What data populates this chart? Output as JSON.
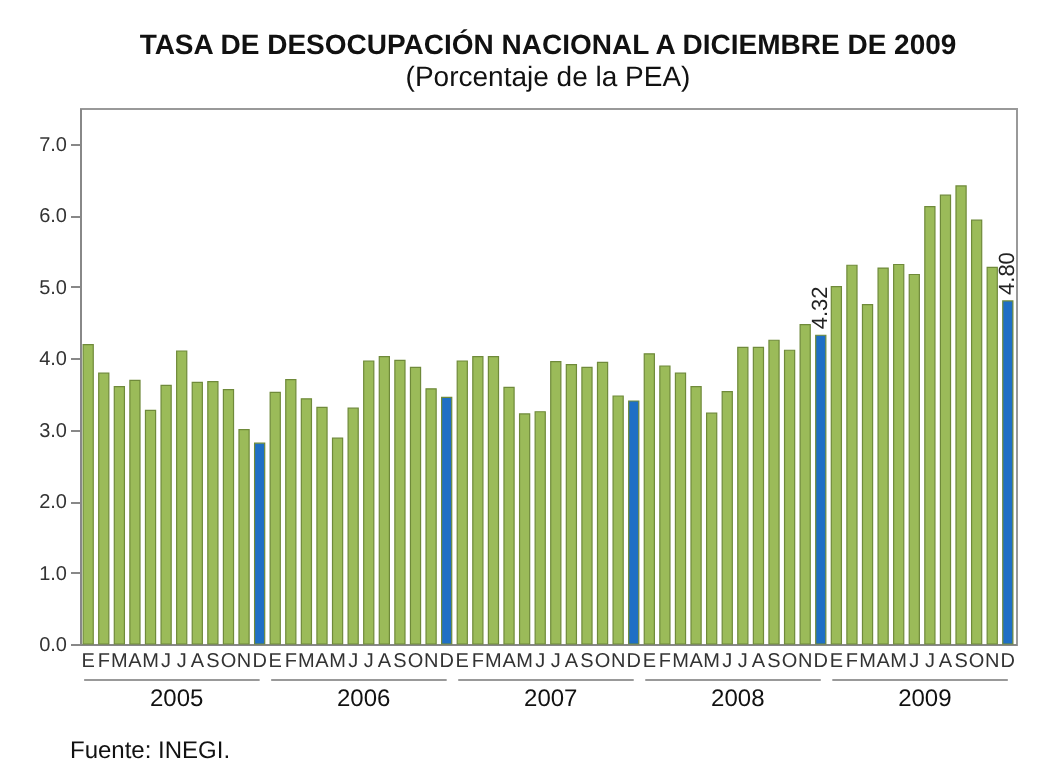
{
  "chart_data": {
    "type": "bar",
    "title": "TASA DE DESOCUPACIÓN NACIONAL A DICIEMBRE DE 2009",
    "subtitle": "(Porcentaje de la PEA)",
    "annotations": [
      "2005",
      "2006",
      "2007",
      "2008",
      "2009",
      "Fuente: INEGI."
    ],
    "categories": [
      "E",
      "F",
      "M",
      "A",
      "M",
      "J",
      "J",
      "A",
      "S",
      "O",
      "N",
      "D",
      "E",
      "F",
      "M",
      "A",
      "M",
      "J",
      "J",
      "A",
      "S",
      "O",
      "N",
      "D",
      "E",
      "F",
      "M",
      "A",
      "M",
      "J",
      "J",
      "A",
      "S",
      "O",
      "N",
      "D",
      "E",
      "F",
      "M",
      "A",
      "M",
      "J",
      "J",
      "A",
      "S",
      "O",
      "N",
      "D",
      "E",
      "F",
      "M",
      "A",
      "M",
      "J",
      "J",
      "A",
      "S",
      "O",
      "N",
      "D"
    ],
    "values": [
      4.19,
      3.79,
      3.6,
      3.69,
      3.27,
      3.62,
      4.1,
      3.66,
      3.67,
      3.56,
      3.0,
      2.81,
      3.52,
      3.7,
      3.43,
      3.31,
      2.88,
      3.3,
      3.96,
      4.02,
      3.97,
      3.87,
      3.57,
      3.45,
      3.96,
      4.02,
      4.02,
      3.59,
      3.22,
      3.25,
      3.95,
      3.91,
      3.87,
      3.94,
      3.47,
      3.4,
      4.06,
      3.89,
      3.79,
      3.6,
      3.23,
      3.53,
      4.15,
      4.15,
      4.25,
      4.11,
      4.47,
      4.32,
      5.0,
      5.3,
      4.75,
      5.26,
      5.31,
      5.17,
      6.12,
      6.28,
      6.41,
      5.93,
      5.27,
      4.8
    ],
    "colors": [
      "#9bbb59",
      "#9bbb59",
      "#9bbb59",
      "#9bbb59",
      "#9bbb59",
      "#9bbb59",
      "#9bbb59",
      "#9bbb59",
      "#9bbb59",
      "#9bbb59",
      "#9bbb59",
      "#1f6fc5",
      "#9bbb59",
      "#9bbb59",
      "#9bbb59",
      "#9bbb59",
      "#9bbb59",
      "#9bbb59",
      "#9bbb59",
      "#9bbb59",
      "#9bbb59",
      "#9bbb59",
      "#9bbb59",
      "#1f6fc5",
      "#9bbb59",
      "#9bbb59",
      "#9bbb59",
      "#9bbb59",
      "#9bbb59",
      "#9bbb59",
      "#9bbb59",
      "#9bbb59",
      "#9bbb59",
      "#9bbb59",
      "#9bbb59",
      "#1f6fc5",
      "#9bbb59",
      "#9bbb59",
      "#9bbb59",
      "#9bbb59",
      "#9bbb59",
      "#9bbb59",
      "#9bbb59",
      "#9bbb59",
      "#9bbb59",
      "#9bbb59",
      "#9bbb59",
      "#1f6fc5",
      "#9bbb59",
      "#9bbb59",
      "#9bbb59",
      "#9bbb59",
      "#9bbb59",
      "#9bbb59",
      "#9bbb59",
      "#9bbb59",
      "#9bbb59",
      "#9bbb59",
      "#9bbb59",
      "#1f6fc5"
    ],
    "value_labels": [
      null,
      null,
      null,
      null,
      null,
      null,
      null,
      null,
      null,
      null,
      null,
      null,
      null,
      null,
      null,
      null,
      null,
      null,
      null,
      null,
      null,
      null,
      null,
      null,
      null,
      null,
      null,
      null,
      null,
      null,
      null,
      null,
      null,
      null,
      null,
      null,
      null,
      null,
      null,
      null,
      null,
      null,
      null,
      null,
      null,
      null,
      null,
      "4.32",
      null,
      null,
      null,
      null,
      null,
      null,
      null,
      null,
      null,
      null,
      null,
      "4.80"
    ],
    "ylim": [
      0,
      7.5
    ],
    "yticks": [
      {
        "value": 0,
        "label": "0.0"
      },
      {
        "value": 1,
        "label": "1.0"
      },
      {
        "value": 2,
        "label": "2.0"
      },
      {
        "value": 3,
        "label": "3.0"
      },
      {
        "value": 4,
        "label": "4.0"
      },
      {
        "value": 5,
        "label": "5.0"
      },
      {
        "value": 6,
        "label": "6.0"
      },
      {
        "value": 7,
        "label": "7.0"
      }
    ],
    "grid": false
  }
}
